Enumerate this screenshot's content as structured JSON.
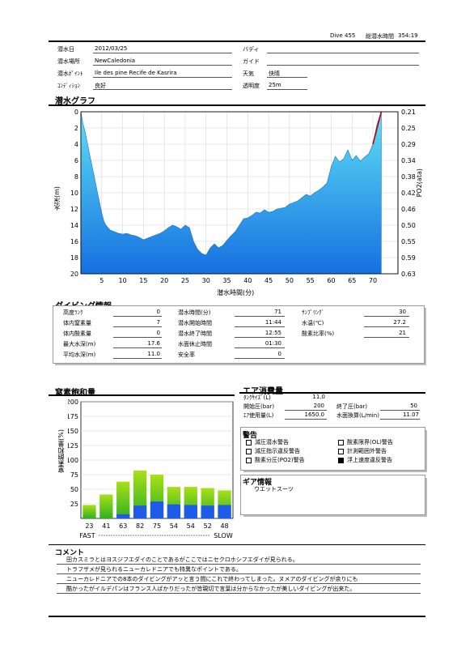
{
  "header": {
    "dive_no": "Dive 455",
    "total_time_label": "総潜水時間",
    "total_time": "354:19"
  },
  "info": {
    "date_label": "潜水日",
    "date": "2012/03/25",
    "buddy_label": "バディ",
    "buddy": "",
    "place_label": "潜水場所",
    "place": "NewCaledonia",
    "guide_label": "ガイド",
    "guide": "",
    "point_label": "潜水ﾎﾟｲﾝﾄ",
    "point": "Ile des pine Recife de Kasrira",
    "weather_label": "天気",
    "weather": "快晴",
    "condition_label": "ｺﾝﾃﾞｨｼｮﾝ",
    "condition": "良好",
    "visibility_label": "透明度",
    "visibility": "25m"
  },
  "graph": {
    "title": "潜水グラフ",
    "xlabel": "潜水時間(分)",
    "ylabel_left": "水深(m)",
    "ylabel_right": "PO2(ata)"
  },
  "chart_data": [
    {
      "type": "area",
      "xlabel": "潜水時間(分)",
      "ylabel": "水深(m)",
      "ylabel_right": "PO2(ata)",
      "xlim": [
        0,
        76
      ],
      "ylim": [
        20,
        0
      ],
      "x_ticks": [
        5,
        10,
        15,
        20,
        25,
        30,
        35,
        40,
        45,
        50,
        55,
        60,
        65,
        70
      ],
      "y_ticks": [
        0,
        2,
        4,
        6,
        8,
        10,
        12,
        14,
        16,
        18,
        20
      ],
      "y_right_ticks": [
        "0.21",
        "0.25",
        "0.29",
        "0.34",
        "0.38",
        "0.42",
        "0.46",
        "0.50",
        "0.55",
        "0.59",
        "0.63"
      ],
      "series": [
        {
          "x": [
            0,
            0.5,
            1,
            2,
            3,
            4,
            5,
            5.5,
            6,
            7,
            8,
            9,
            10,
            11,
            12,
            13,
            14,
            15,
            16,
            17,
            18,
            19,
            20,
            21,
            22,
            23,
            24,
            25,
            26,
            27,
            28,
            29,
            30,
            31,
            32,
            33,
            34,
            35,
            36,
            37,
            38,
            39,
            40,
            41,
            42,
            43,
            44,
            45,
            46,
            47,
            48,
            49,
            50,
            51,
            52,
            53,
            54,
            55,
            56,
            57,
            58,
            59,
            60,
            61,
            62,
            63,
            64,
            65,
            66,
            67,
            68,
            69,
            70,
            71,
            72
          ],
          "y": [
            0,
            1.5,
            2.5,
            5.0,
            7.5,
            10.0,
            12.5,
            13.5,
            14.0,
            14.6,
            14.8,
            15.0,
            15.1,
            15.0,
            15.2,
            15.3,
            15.5,
            15.8,
            15.6,
            15.4,
            15.2,
            15.0,
            14.7,
            14.3,
            14.0,
            14.2,
            14.5,
            14.0,
            14.3,
            16.0,
            17.0,
            17.5,
            17.7,
            16.8,
            16.3,
            16.8,
            16.5,
            15.9,
            15.3,
            14.8,
            14.0,
            13.2,
            13.1,
            12.8,
            12.4,
            12.5,
            12.1,
            12.4,
            12.3,
            12.0,
            11.9,
            11.8,
            11.4,
            11.2,
            11.0,
            10.6,
            10.2,
            10.4,
            10.0,
            9.7,
            9.3,
            8.8,
            6.8,
            5.5,
            6.2,
            5.8,
            4.7,
            6.0,
            5.4,
            6.1,
            5.6,
            5.2,
            4.0,
            1.5,
            0
          ]
        }
      ]
    },
    {
      "type": "bar",
      "title": "窒素飽和量",
      "ylabel": "窒素飽和量(%)",
      "ylim": [
        0,
        200
      ],
      "y_ticks": [
        25,
        50,
        75,
        100,
        125,
        150,
        175,
        200
      ],
      "categories": [
        "23",
        "41",
        "63",
        "82",
        "75",
        "54",
        "54",
        "52",
        "48"
      ],
      "series": [
        {
          "name": "total",
          "values": [
            23,
            41,
            63,
            82,
            75,
            54,
            54,
            52,
            48
          ]
        },
        {
          "name": "slow",
          "values": [
            0,
            0,
            7,
            22,
            29,
            24,
            23,
            22,
            23
          ]
        }
      ],
      "x_labels": [
        "FAST",
        "SLOW"
      ]
    }
  ],
  "dive_info": {
    "title": "ダイビング情報",
    "rows": [
      [
        {
          "label": "高度ﾗﾝｸ",
          "value": "0"
        },
        {
          "label": "潜水時間(分)",
          "value": "71"
        },
        {
          "label": "ｻﾝﾌﾟﾘﾝｸﾞ",
          "value": "30"
        }
      ],
      [
        {
          "label": "体内窒素量",
          "value": "7"
        },
        {
          "label": "潜水開始時間",
          "value": "11:44"
        },
        {
          "label": "水温(℃)",
          "value": "27.2"
        }
      ],
      [
        {
          "label": "体内酸素量",
          "value": "0"
        },
        {
          "label": "潜水終了時間",
          "value": "12:55"
        },
        {
          "label": "酸素比率(%)",
          "value": "21"
        }
      ],
      [
        {
          "label": "最大水深(m)",
          "value": "17.6"
        },
        {
          "label": "水面休止時間",
          "value": "01:30"
        }
      ],
      [
        {
          "label": "平均水深(m)",
          "value": "11.0"
        },
        {
          "label": "安全率",
          "value": "0"
        }
      ]
    ]
  },
  "air": {
    "title": "エア消費量",
    "tank_label": "ﾀﾝｸｻｲｽﾞ(L)",
    "tank": "11.0",
    "start_label": "開始圧(bar)",
    "start": "200",
    "end_label": "終了圧(bar)",
    "end": "50",
    "used_label": "ｴｱ使用量(L)",
    "used": "1650.0",
    "surface_label": "水面換算(L/min)",
    "surface": "11.07"
  },
  "warnings": {
    "title": "警告",
    "items": [
      {
        "label": "減圧潜水警告",
        "checked": false
      },
      {
        "label": "酸素限界(OL)警告",
        "checked": false
      },
      {
        "label": "減圧指示違反警告",
        "checked": false
      },
      {
        "label": "計測範囲外警告",
        "checked": false
      },
      {
        "label": "酸素分圧(PO2)警告",
        "checked": false
      },
      {
        "label": "浮上速度違反警告",
        "checked": true
      }
    ]
  },
  "gear": {
    "title": "ギア情報",
    "items": "ウエットスーツ"
  },
  "comment": {
    "title": "コメント",
    "lines": [
      "田カスミラとはヨスジフエダイのことであるがここではニセクロホシフエダイが見られる。",
      "トラフザメが見られるニューカレドニアでも特異なポイントである。",
      "ニューカレドニアでの8本のダイビングがアッと言う間にこれで終わってしまった。ヌメアのダイビングが余りにも",
      "酷かったがイルデパンはフランス人ばかりだったが皆親切で言葉は分からなかったが美しいダイビングが出来た。"
    ]
  },
  "colors": {
    "area_top": "#5fe0f5",
    "area_bottom": "#1570e0",
    "bar_green_top": "#a8e018",
    "bar_green_bottom": "#30b020",
    "bar_blue": "#1d5be8",
    "ascent_line": "#c00000"
  }
}
